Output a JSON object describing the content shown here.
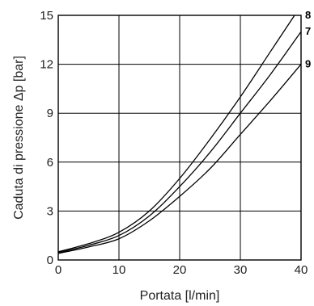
{
  "chart_data": {
    "type": "line",
    "xlabel": "Portata [l/min]",
    "ylabel": "Caduta di pressione Δp [bar]",
    "xlim": [
      0,
      40
    ],
    "ylim": [
      0,
      15
    ],
    "xticks": [
      0,
      10,
      20,
      30,
      40
    ],
    "yticks": [
      0,
      3,
      6,
      9,
      12,
      15
    ],
    "grid": true,
    "x": [
      0,
      5,
      10,
      15,
      20,
      25,
      30,
      35,
      40
    ],
    "series": [
      {
        "name": "8",
        "values": [
          0.5,
          1.0,
          1.7,
          3.0,
          5.0,
          7.4,
          10.0,
          12.8,
          null
        ]
      },
      {
        "name": "7",
        "values": [
          0.45,
          0.9,
          1.5,
          2.7,
          4.5,
          6.6,
          9.0,
          11.4,
          14.0
        ]
      },
      {
        "name": "9",
        "values": [
          0.4,
          0.8,
          1.3,
          2.4,
          3.9,
          5.6,
          7.7,
          9.8,
          12.0
        ]
      }
    ]
  }
}
